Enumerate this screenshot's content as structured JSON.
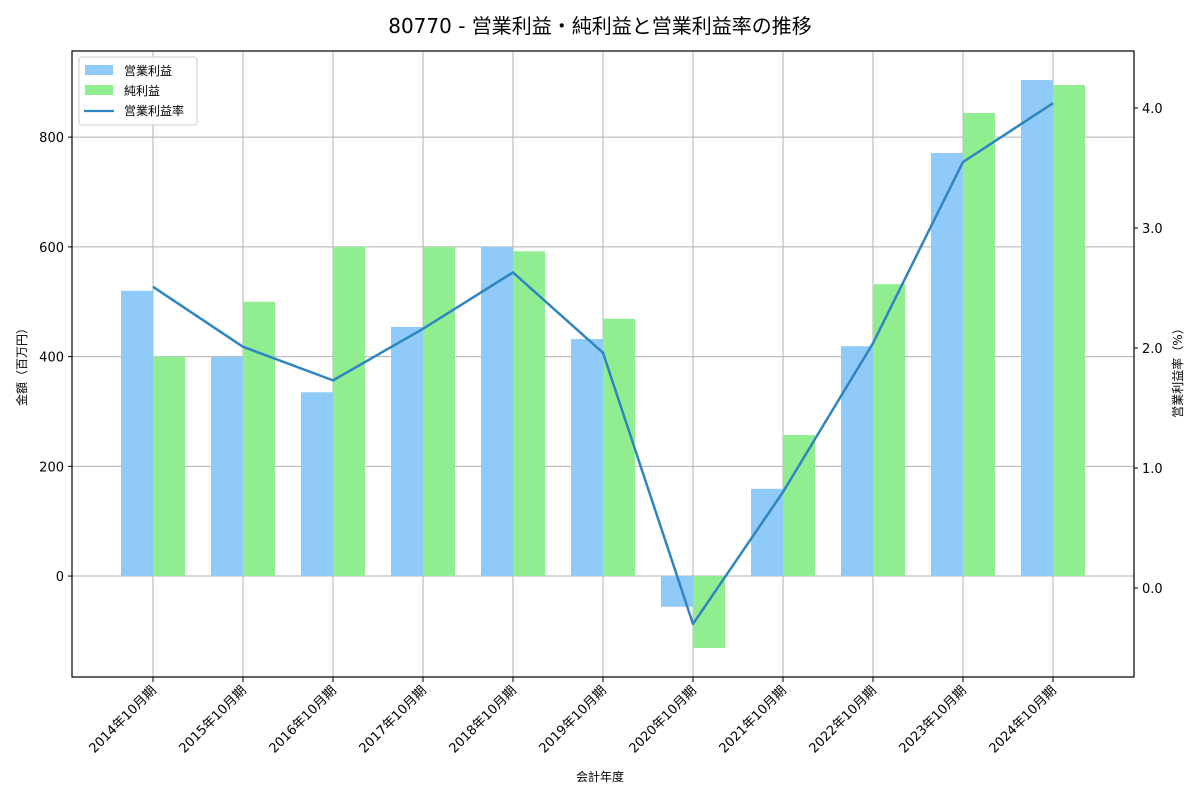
{
  "chart_data": {
    "type": "bar+line",
    "title": "80770 - 営業利益・純利益と営業利益率の推移",
    "xlabel": "会計年度",
    "ylabel": "金額（百万円）",
    "y2label": "営業利益率（%）",
    "categories": [
      "2014年10月期",
      "2015年10月期",
      "2016年10月期",
      "2017年10月期",
      "2018年10月期",
      "2019年10月期",
      "2020年10月期",
      "2021年10月期",
      "2022年10月期",
      "2023年10月期",
      "2024年10月期"
    ],
    "series": [
      {
        "name": "営業利益",
        "type": "bar",
        "axis": "left",
        "color": "#90caf9",
        "values": [
          520,
          400,
          335,
          454,
          600,
          432,
          -56,
          159,
          419,
          771,
          904
        ]
      },
      {
        "name": "純利益",
        "type": "bar",
        "axis": "left",
        "color": "#90ee90",
        "values": [
          400,
          500,
          600,
          600,
          592,
          469,
          -131,
          257,
          532,
          844,
          895
        ]
      },
      {
        "name": "営業利益率",
        "type": "line",
        "axis": "right",
        "color": "#2e86c1",
        "values": [
          2.51,
          2.01,
          1.73,
          2.16,
          2.63,
          1.96,
          -0.3,
          0.8,
          2.04,
          3.55,
          4.04
        ]
      }
    ],
    "ylim": [
      -184,
      957
    ],
    "y2lim": [
      -0.742,
      4.475
    ],
    "yticks": [
      0,
      200,
      400,
      600,
      800
    ],
    "y2ticks": [
      0.0,
      1.0,
      2.0,
      3.0,
      4.0
    ],
    "ytick_labels": [
      "0",
      "200",
      "400",
      "600",
      "800"
    ],
    "y2tick_labels": [
      "0.0",
      "1.0",
      "2.0",
      "3.0",
      "4.0"
    ],
    "grid": true,
    "legend_position": "upper left"
  }
}
